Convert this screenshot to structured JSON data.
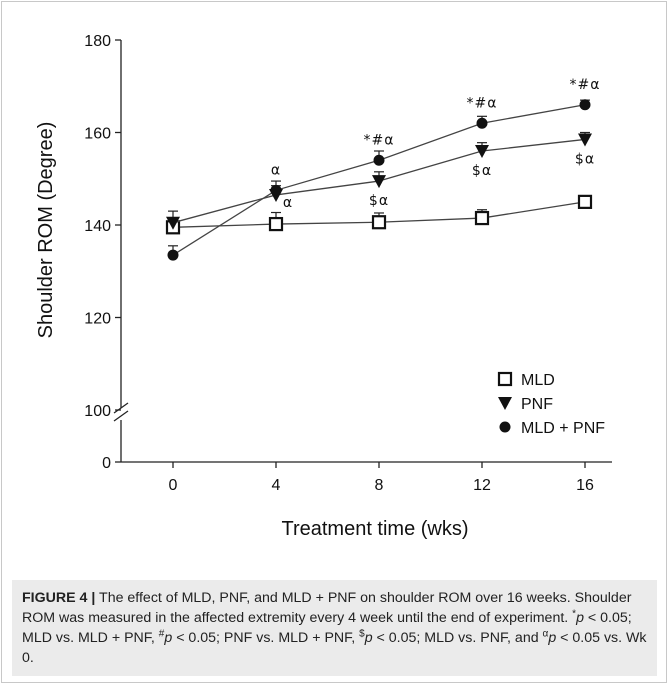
{
  "chart_data": {
    "type": "line",
    "xlabel": "Treatment time (wks)",
    "ylabel": "Shoulder ROM (Degree)",
    "x": [
      0,
      4,
      8,
      12,
      16
    ],
    "xticks": [
      "0",
      "4",
      "8",
      "12",
      "16"
    ],
    "yticks": [
      "0",
      "100",
      "120",
      "140",
      "160",
      "180"
    ],
    "ylim": [
      100,
      180
    ],
    "y_axis_break": "between 0 and 100",
    "grid": false,
    "legend_position": "bottom-right",
    "series": [
      {
        "name": "MLD",
        "marker": "open-square",
        "values": [
          139.5,
          140.2,
          140.6,
          141.5,
          145.0
        ],
        "errors": [
          1.5,
          2.5,
          2.0,
          1.8,
          1.0
        ],
        "annotations": [
          "",
          "",
          "",
          "",
          ""
        ]
      },
      {
        "name": "PNF",
        "marker": "filled-triangle-down",
        "values": [
          140.5,
          146.5,
          149.5,
          156.0,
          158.5
        ],
        "errors": [
          2.5,
          2.0,
          2.0,
          1.8,
          1.5
        ],
        "annotations": [
          "",
          "α",
          "$α",
          "$α",
          "$α"
        ]
      },
      {
        "name": "MLD + PNF",
        "marker": "filled-circle",
        "values": [
          133.5,
          147.5,
          154.0,
          162.0,
          166.0
        ],
        "errors": [
          2.0,
          2.0,
          2.0,
          1.5,
          1.0
        ],
        "annotations": [
          "",
          "α",
          "*#α",
          "*#α",
          "*#α"
        ]
      }
    ]
  },
  "caption": {
    "figure_label": "FIGURE 4 |",
    "text_1": "The effect of MLD, PNF, and MLD + PNF on shoulder ROM over 16 weeks. Shoulder ROM was measured in the affected extremity every 4 week until the end of experiment.",
    "sym_star": "*",
    "p_1": "p",
    "text_2": "< 0.05; MLD vs. MLD + PNF,",
    "sym_hash": "#",
    "p_2": "p",
    "text_3": "< 0.05; PNF vs. MLD + PNF,",
    "sym_dollar": "$",
    "p_3": "p",
    "text_4": "< 0.05; MLD vs. PNF, and",
    "sym_alpha": "α",
    "p_4": "p",
    "text_5": "< 0.05 vs. Wk 0."
  }
}
